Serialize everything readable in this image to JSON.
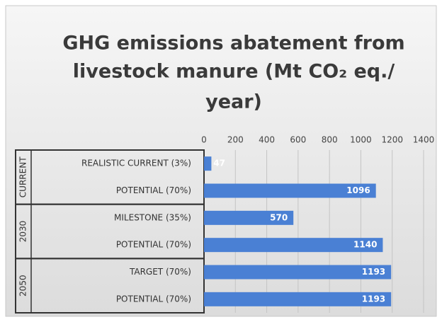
{
  "chart_data": {
    "type": "bar",
    "orientation": "horizontal",
    "title": [
      "GHG emissions abatement from",
      "livestock manure (Mt CO₂ eq./",
      "year)"
    ],
    "groups": [
      {
        "name": "CURRENT",
        "categories": [
          "REALISTIC CURRENT (3%)",
          "POTENTIAL (70%)"
        ],
        "values": [
          47,
          1096
        ]
      },
      {
        "name": "2030",
        "categories": [
          "MILESTONE (35%)",
          "POTENTIAL (70%)"
        ],
        "values": [
          570,
          1140
        ]
      },
      {
        "name": "2050",
        "categories": [
          "TARGET (70%)",
          "POTENTIAL (70%)"
        ],
        "values": [
          1193,
          1193
        ]
      }
    ],
    "color": "#4a80d4",
    "xlim": [
      0,
      1400
    ],
    "xticks": [
      0,
      200,
      400,
      600,
      800,
      1000,
      1200,
      1400
    ],
    "grid": true
  }
}
